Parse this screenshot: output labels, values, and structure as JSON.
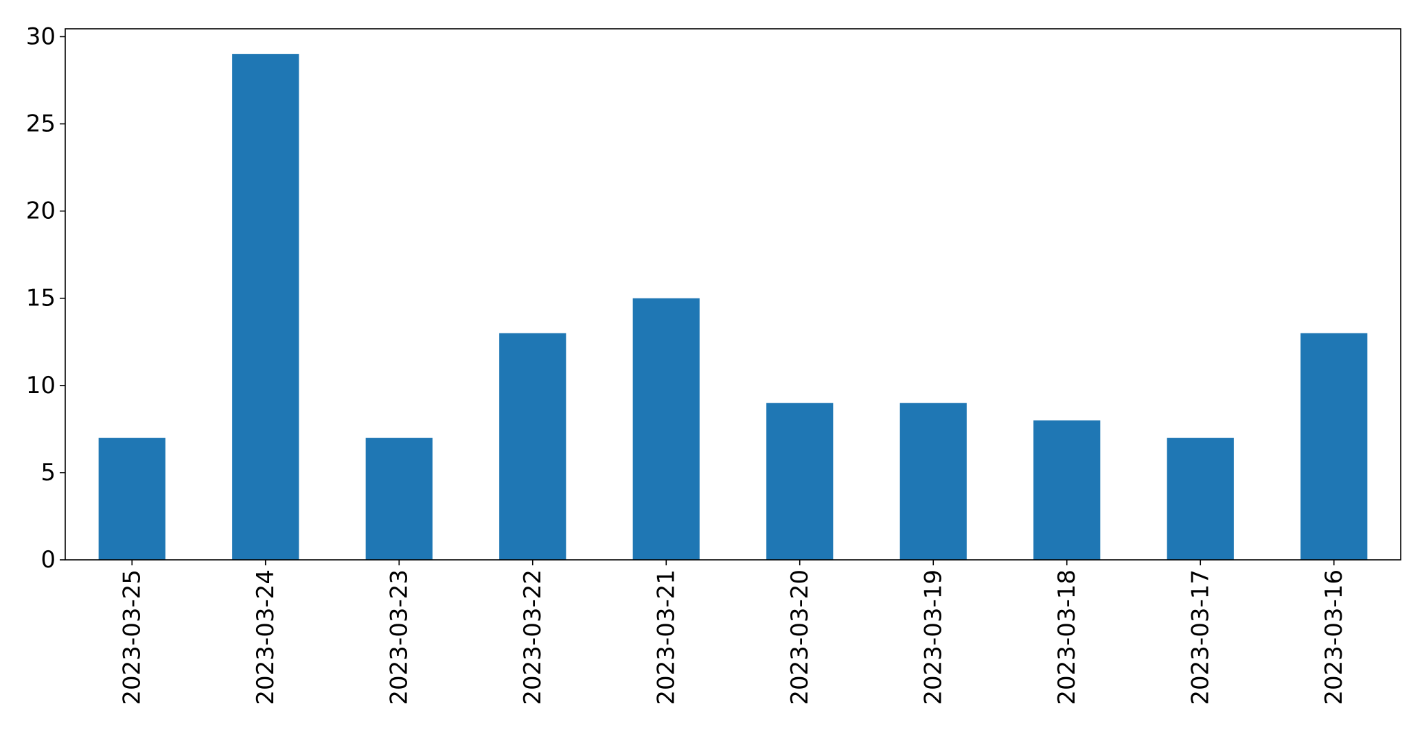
{
  "chart_data": {
    "type": "bar",
    "categories": [
      "2023-03-25",
      "2023-03-24",
      "2023-03-23",
      "2023-03-22",
      "2023-03-21",
      "2023-03-20",
      "2023-03-19",
      "2023-03-18",
      "2023-03-17",
      "2023-03-16"
    ],
    "values": [
      7,
      29,
      7,
      13,
      15,
      9,
      9,
      8,
      7,
      13
    ],
    "title": "",
    "xlabel": "",
    "ylabel": "",
    "ylim": [
      0,
      30.45
    ],
    "yticks": [
      0,
      5,
      10,
      15,
      20,
      25,
      30
    ],
    "x_tick_rotation": "vertical",
    "grid": false,
    "legend": "none",
    "colors": {
      "bar": "#1f77b4",
      "axes": "#000000",
      "background": "#ffffff"
    }
  }
}
